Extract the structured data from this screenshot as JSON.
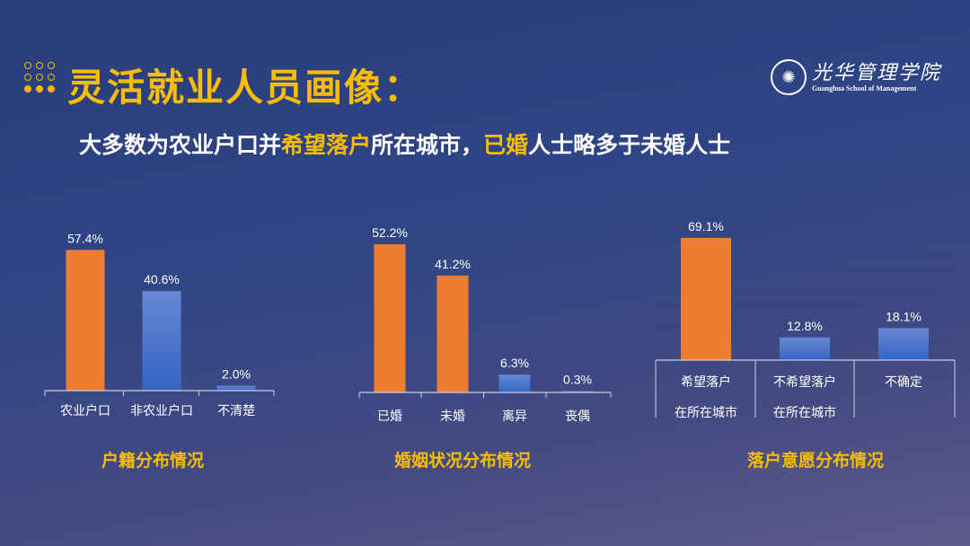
{
  "slide": {
    "title": "灵活就业人员画像：",
    "subtitle": {
      "parts": [
        {
          "text": "大多数为农业户口并",
          "highlight": false
        },
        {
          "text": "希望落户",
          "highlight": true
        },
        {
          "text": "所在城市，",
          "highlight": false
        },
        {
          "text": "已婚",
          "highlight": true
        },
        {
          "text": "人士略多于未婚人士",
          "highlight": false
        }
      ]
    },
    "logo": {
      "cn": "光华管理学院",
      "en": "Guanghua School of Management"
    }
  },
  "colors": {
    "highlight": "#f8bd00",
    "orange": "#ed7d31",
    "blue": "#4472c4",
    "background": "#2f4585"
  },
  "chart_data": [
    {
      "type": "bar",
      "title": "户籍分布情况",
      "categories": [
        "农业户口",
        "非农业户口",
        "不清楚"
      ],
      "values": [
        57.4,
        40.6,
        2.0
      ],
      "labels": [
        "57.4%",
        "40.6%",
        "2.0%"
      ],
      "unit": "%",
      "bar_colors": [
        "orange",
        "blue",
        "blue"
      ],
      "grid": false
    },
    {
      "type": "bar",
      "title": "婚姻状况分布情况",
      "categories": [
        "已婚",
        "未婚",
        "离异",
        "丧偶"
      ],
      "values": [
        52.2,
        41.2,
        6.3,
        0.3
      ],
      "labels": [
        "52.2%",
        "41.2%",
        "6.3%",
        "0.3%"
      ],
      "unit": "%",
      "bar_colors": [
        "orange",
        "orange",
        "blue",
        "blue"
      ],
      "grid": false
    },
    {
      "type": "bar",
      "title": "落户意愿分布情况",
      "categories": [
        [
          "希望落户",
          "在所在城市"
        ],
        [
          "不希望落户",
          "在所在城市"
        ],
        [
          "不确定"
        ]
      ],
      "values": [
        69.1,
        12.8,
        18.1
      ],
      "labels": [
        "69.1%",
        "12.8%",
        "18.1%"
      ],
      "unit": "%",
      "bar_colors": [
        "orange",
        "blue",
        "blue"
      ],
      "grid": true,
      "ylim": [
        0,
        80
      ]
    }
  ]
}
